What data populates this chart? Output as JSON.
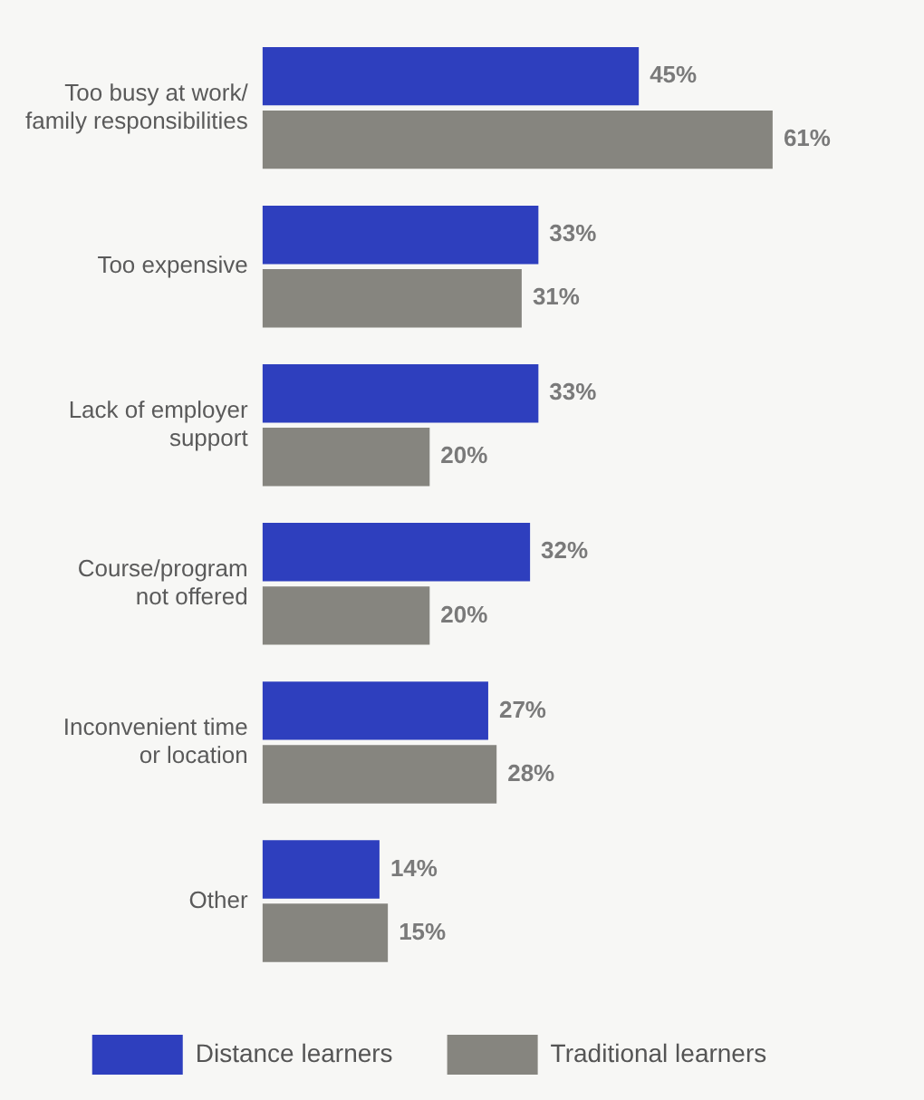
{
  "chart_data": {
    "type": "bar",
    "orientation": "horizontal",
    "categories": [
      "Too busy at work/\nfamily responsibilities",
      "Too expensive",
      "Lack of employer\nsupport",
      "Course/program\nnot offered",
      "Inconvenient time\nor location",
      "Other"
    ],
    "series": [
      {
        "name": "Distance learners",
        "color": "#2e3fbe",
        "values": [
          45,
          33,
          33,
          32,
          27,
          14
        ],
        "value_labels": [
          "45%",
          "33%",
          "33%",
          "32%",
          "27%",
          "14%"
        ]
      },
      {
        "name": "Traditional learners",
        "color": "#86857f",
        "values": [
          61,
          31,
          20,
          20,
          28,
          15
        ],
        "value_labels": [
          "61%",
          "31%",
          "20%",
          "20%",
          "28%",
          "15%"
        ]
      }
    ],
    "tick_labels": "y",
    "legend": "bottom"
  }
}
